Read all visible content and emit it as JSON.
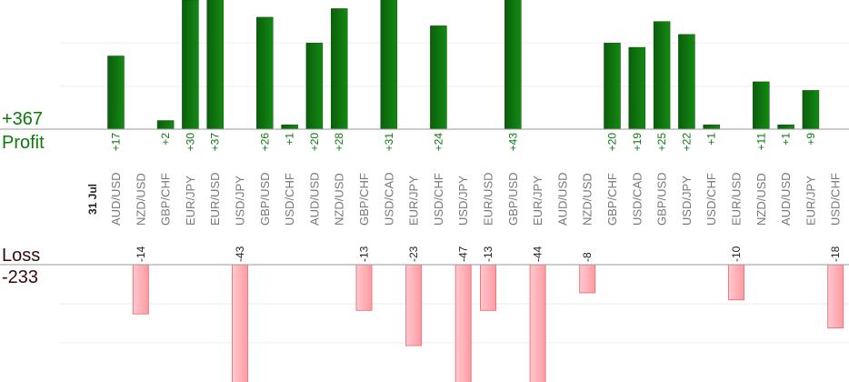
{
  "chart_data": {
    "type": "bar",
    "date": "31 Jul",
    "profit_label": "Profit",
    "loss_label": "Loss",
    "profit_total": "+367",
    "loss_total": "-233",
    "categories": [
      "AUD/USD",
      "NZD/USD",
      "GBP/CHF",
      "EUR/JPY",
      "EUR/USD",
      "USD/JPY",
      "GBP/USD",
      "USD/CHF",
      "AUD/USD",
      "NZD/USD",
      "GBP/CHF",
      "USD/CAD",
      "EUR/JPY",
      "USD/CHF",
      "USD/JPY",
      "EUR/USD",
      "GBP/USD",
      "EUR/JPY",
      "AUD/USD",
      "NZD/USD",
      "GBP/CHF",
      "USD/CAD",
      "GBP/USD",
      "USD/JPY",
      "USD/CHF",
      "EUR/USD",
      "NZD/USD",
      "AUD/USD",
      "EUR/JPY",
      "USD/CHF"
    ],
    "series": [
      {
        "values": [
          17,
          0,
          2,
          30,
          37,
          0,
          26,
          1,
          20,
          28,
          0,
          31,
          0,
          24,
          0,
          0,
          43,
          0,
          0,
          0,
          20,
          19,
          25,
          22,
          1,
          0,
          11,
          1,
          9,
          0
        ],
        "labels": [
          "+17",
          "",
          "+2",
          "+30",
          "+37",
          "",
          "+26",
          "+1",
          "+20",
          "+28",
          "",
          "+31",
          "",
          "+24",
          "",
          "",
          "+43",
          "",
          "",
          "",
          "+20",
          "+19",
          "+25",
          "+22",
          "+1",
          "",
          "+11",
          "+1",
          "+9",
          ""
        ]
      },
      {
        "values": [
          0,
          -14,
          0,
          0,
          0,
          -43,
          0,
          0,
          0,
          0,
          -13,
          0,
          -23,
          0,
          -47,
          -13,
          0,
          -44,
          0,
          -8,
          0,
          0,
          0,
          0,
          0,
          -10,
          0,
          0,
          0,
          -18
        ],
        "labels": [
          "",
          "-14",
          "",
          "",
          "",
          "-43",
          "",
          "",
          "",
          "",
          "-13",
          "",
          "-23",
          "",
          "-47",
          "-13",
          "",
          "-44",
          "",
          "-8",
          "",
          "",
          "",
          "",
          "",
          "-10",
          "",
          "",
          "",
          "-18"
        ]
      }
    ],
    "profit_ylim": [
      0,
      30
    ],
    "loss_ylim": [
      -30,
      0
    ],
    "grid": true,
    "colors": {
      "profit_bar": "#0a6b0a",
      "profit_bar_light": "#1a8a1a",
      "loss_bar_fill": "#ffb3b8",
      "loss_bar_stroke": "#e87a82",
      "profit_text": "#0a7a0a",
      "loss_text": "#3a0a0a",
      "grid": "#eeeeee",
      "axis": "#999999"
    }
  }
}
